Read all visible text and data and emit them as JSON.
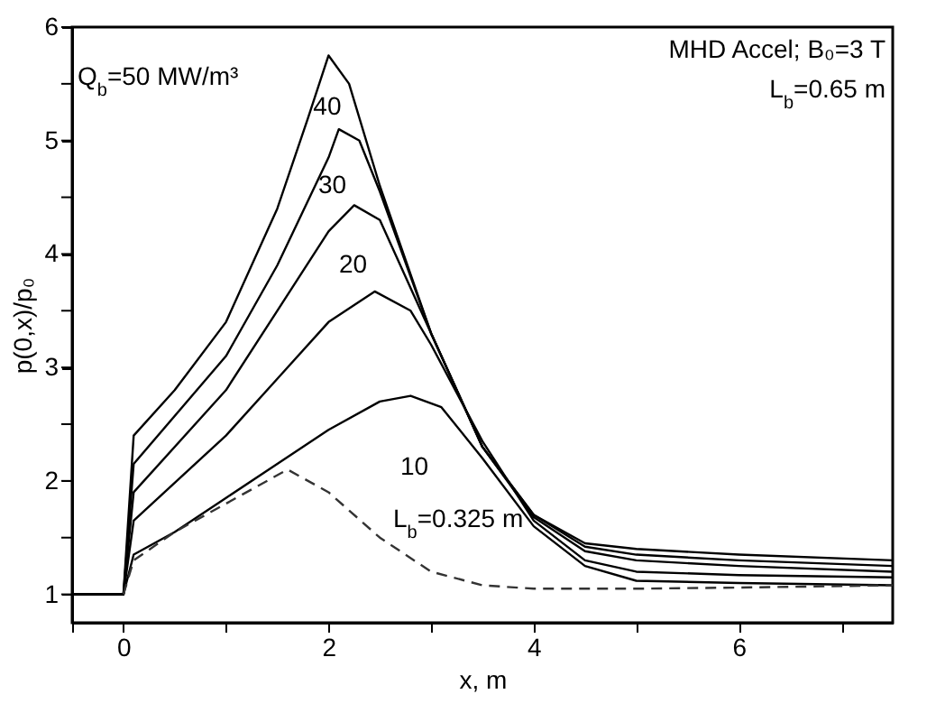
{
  "chart_data": {
    "type": "line",
    "xlabel": "x, m",
    "ylabel": "p(0,x)/p₀",
    "xlim": [
      -0.5,
      7.5
    ],
    "ylim": [
      0.75,
      6
    ],
    "xticks": [
      {
        "value": -0.5,
        "label": null
      },
      0,
      {
        "value": 1,
        "label": null
      },
      2,
      {
        "value": 3,
        "label": null
      },
      4,
      {
        "value": 5,
        "label": null
      },
      6,
      {
        "value": 7,
        "label": null
      }
    ],
    "yticks": [
      1,
      {
        "value": 1.5,
        "label": null
      },
      2,
      {
        "value": 2.5,
        "label": null
      },
      3,
      {
        "value": 3.5,
        "label": null
      },
      4,
      {
        "value": 4.5,
        "label": null
      },
      5,
      {
        "value": 5.5,
        "label": null
      },
      6
    ],
    "grid": false,
    "legend": false,
    "marker": "none",
    "series": [
      {
        "color": "#000000",
        "line_style": "solid",
        "x": [
          -0.5,
          0,
          0.1,
          0.5,
          1,
          1.5,
          1.8,
          2,
          2.2,
          2.5,
          3,
          3.5,
          4,
          4.5,
          5,
          6,
          7.5
        ],
        "values": [
          1,
          1,
          2.4,
          2.8,
          3.4,
          4.4,
          5.2,
          5.75,
          5.5,
          4.6,
          3.3,
          2.3,
          1.7,
          1.45,
          1.4,
          1.35,
          1.3
        ]
      },
      {
        "color": "#000000",
        "line_style": "solid",
        "x": [
          -0.5,
          0,
          0.1,
          1,
          1.5,
          2,
          2.1,
          2.3,
          2.5,
          3,
          3.5,
          4,
          4.5,
          5,
          6,
          7.5
        ],
        "values": [
          1,
          1,
          2.15,
          3.1,
          3.9,
          4.85,
          5.1,
          5.0,
          4.55,
          3.3,
          2.3,
          1.7,
          1.42,
          1.35,
          1.3,
          1.25
        ]
      },
      {
        "color": "#000000",
        "line_style": "solid",
        "x": [
          -0.5,
          0,
          0.1,
          1,
          1.5,
          2,
          2.25,
          2.5,
          3,
          3.5,
          4,
          4.5,
          5,
          6,
          7.5
        ],
        "values": [
          1,
          1,
          1.9,
          2.8,
          3.5,
          4.2,
          4.43,
          4.3,
          3.3,
          2.3,
          1.68,
          1.38,
          1.3,
          1.25,
          1.2
        ]
      },
      {
        "color": "#000000",
        "line_style": "solid",
        "x": [
          -0.5,
          0,
          0.1,
          1,
          1.5,
          2,
          2.45,
          2.8,
          3,
          3.5,
          4,
          4.5,
          5,
          6,
          7.5
        ],
        "values": [
          1,
          1,
          1.65,
          2.4,
          2.9,
          3.4,
          3.67,
          3.5,
          3.2,
          2.35,
          1.65,
          1.3,
          1.2,
          1.17,
          1.15
        ]
      },
      {
        "color": "#000000",
        "line_style": "solid",
        "x": [
          -0.5,
          0,
          0.1,
          0.5,
          1,
          1.5,
          2,
          2.5,
          2.8,
          3.1,
          3.5,
          4,
          4.5,
          5,
          6,
          7.5
        ],
        "values": [
          1,
          1,
          1.35,
          1.55,
          1.85,
          2.15,
          2.45,
          2.7,
          2.75,
          2.65,
          2.2,
          1.6,
          1.25,
          1.12,
          1.1,
          1.08
        ]
      },
      {
        "color": "#333333",
        "line_style": "dashed",
        "x": [
          0,
          0.1,
          0.5,
          1,
          1.6,
          2,
          2.5,
          3,
          3.5,
          4,
          5,
          6,
          7.5
        ],
        "values": [
          1,
          1.3,
          1.55,
          1.8,
          2.1,
          1.9,
          1.5,
          1.2,
          1.08,
          1.05,
          1.05,
          1.06,
          1.08
        ]
      }
    ],
    "annotations": [
      "Q$_{b}$=50 MW/m³",
      {
        "text": "40",
        "x": 1.85,
        "y": 5.29
      },
      {
        "text": "30",
        "x": 1.9,
        "y": 4.6
      },
      "20",
      "10",
      "L$_{b}$=0.325 m",
      "MHD Accel; B₀=3 T",
      "L$_{b}$=0.65 m"
    ]
  }
}
